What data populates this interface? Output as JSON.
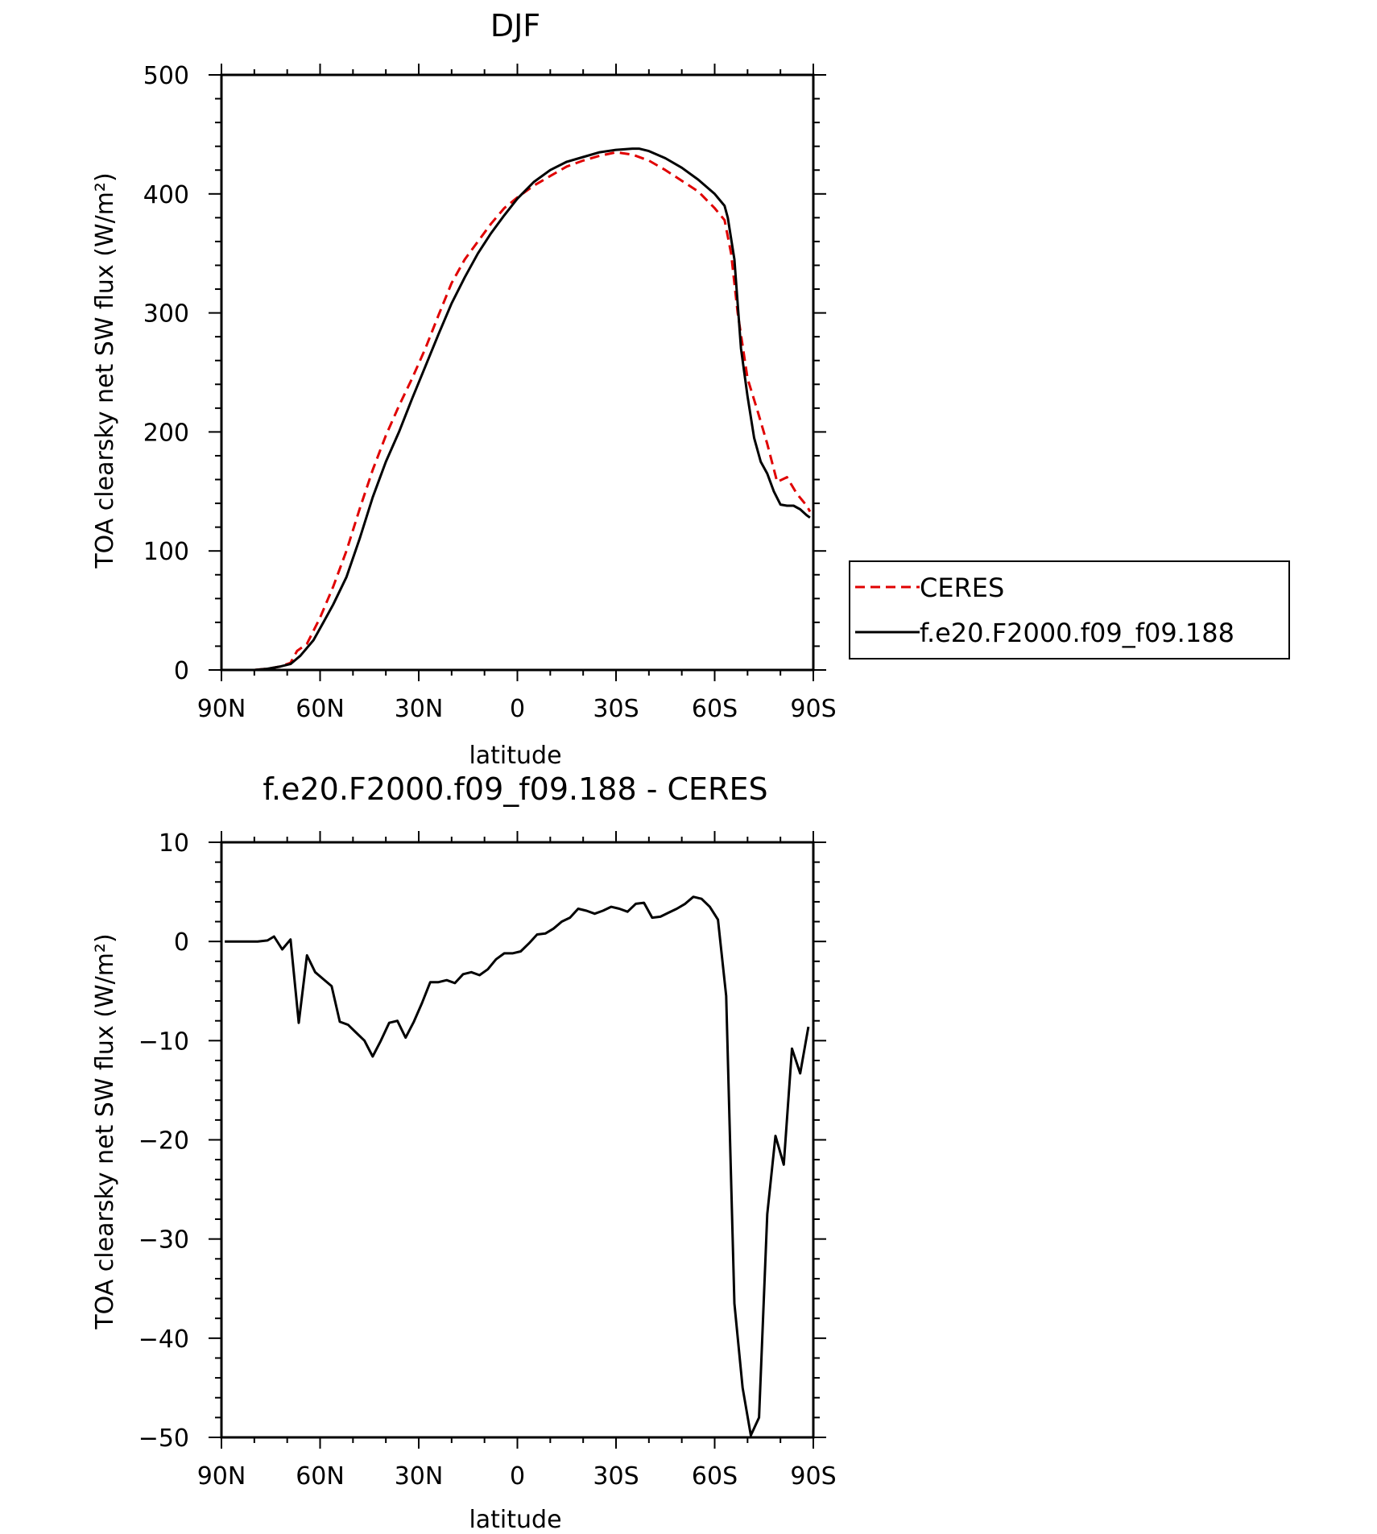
{
  "chart_data": [
    {
      "type": "line",
      "title": "DJF",
      "xlabel": "latitude",
      "ylabel": "TOA clearsky net SW flux (W/m²)",
      "xlim": [
        -90,
        90
      ],
      "ylim": [
        0,
        500
      ],
      "x_ticks": [
        -90,
        -60,
        -30,
        0,
        30,
        60,
        90
      ],
      "x_tick_labels": [
        "90N",
        "60N",
        "30N",
        "0",
        "30S",
        "60S",
        "90S"
      ],
      "y_ticks": [
        0,
        100,
        200,
        300,
        400,
        500
      ],
      "y_tick_labels": [
        "0",
        "100",
        "200",
        "300",
        "400",
        "500"
      ],
      "legend_position": "right",
      "series": [
        {
          "name": "CERES",
          "color": "#e00000",
          "style": "dashed",
          "x": [
            -89,
            -85,
            -80,
            -76,
            -72,
            -69,
            -67,
            -64,
            -60,
            -56,
            -52,
            -48,
            -44,
            -40,
            -36,
            -32,
            -28,
            -24,
            -20,
            -16,
            -12,
            -8,
            -4,
            0,
            5,
            10,
            15,
            20,
            25,
            30,
            35,
            40,
            45,
            50,
            55,
            60,
            63,
            65,
            67,
            70,
            73,
            76,
            79,
            82,
            85,
            88,
            89
          ],
          "y": [
            0,
            0,
            0,
            1,
            3,
            6,
            16,
            22,
            44,
            70,
            100,
            135,
            168,
            197,
            222,
            245,
            270,
            298,
            325,
            345,
            360,
            375,
            388,
            397,
            407,
            415,
            423,
            428,
            432,
            435,
            433,
            428,
            420,
            411,
            402,
            388,
            378,
            350,
            300,
            245,
            218,
            190,
            158,
            162,
            148,
            138,
            133
          ]
        },
        {
          "name": "f.e20.F2000.f09_f09.188",
          "color": "#000000",
          "style": "solid",
          "x": [
            -89,
            -85,
            -80,
            -76,
            -72,
            -69,
            -66,
            -62,
            -59,
            -56,
            -52,
            -48,
            -44,
            -40,
            -36,
            -32,
            -28,
            -24,
            -20,
            -16,
            -12,
            -8,
            -4,
            0,
            5,
            10,
            15,
            20,
            25,
            30,
            35,
            37,
            40,
            45,
            50,
            55,
            60,
            63,
            64,
            66,
            68,
            70,
            72,
            74,
            76,
            78,
            80,
            82,
            84,
            86,
            88,
            89
          ],
          "y": [
            0,
            0,
            0,
            1,
            3,
            5,
            12,
            25,
            40,
            55,
            78,
            110,
            145,
            175,
            200,
            228,
            255,
            282,
            308,
            330,
            350,
            367,
            382,
            396,
            410,
            420,
            427,
            431,
            435,
            437,
            438,
            438,
            436,
            430,
            422,
            412,
            400,
            390,
            380,
            345,
            270,
            230,
            195,
            175,
            165,
            150,
            139,
            138,
            138,
            135,
            130,
            128
          ]
        }
      ]
    },
    {
      "type": "line",
      "title": "f.e20.F2000.f09_f09.188 - CERES",
      "xlabel": "latitude",
      "ylabel": "TOA clearsky net SW flux (W/m²)",
      "xlim": [
        -90,
        90
      ],
      "ylim": [
        -50,
        10
      ],
      "x_ticks": [
        -90,
        -60,
        -30,
        0,
        30,
        60,
        90
      ],
      "x_tick_labels": [
        "90N",
        "60N",
        "30N",
        "0",
        "30S",
        "60S",
        "90S"
      ],
      "y_ticks": [
        -50,
        -40,
        -30,
        -20,
        -10,
        0,
        10
      ],
      "y_tick_labels": [
        "−50",
        "−40",
        "−30",
        "−20",
        "−10",
        "0",
        "10"
      ],
      "series": [
        {
          "name": "",
          "color": "#000000",
          "style": "solid",
          "x": [
            -89,
            -85,
            -82,
            -79,
            -76,
            -74,
            -71.5,
            -69,
            -66.5,
            -64,
            -61.5,
            -59,
            -56.5,
            -54,
            -51.5,
            -49,
            -46.5,
            -44,
            -41.5,
            -39,
            -36.5,
            -34,
            -31.5,
            -29,
            -26.5,
            -24,
            -21.5,
            -19,
            -16.5,
            -14,
            -11.5,
            -9,
            -6.5,
            -4,
            -1.5,
            1,
            3.5,
            6,
            8.5,
            11,
            13.5,
            16,
            18.5,
            21,
            23.5,
            26,
            28.5,
            31,
            33.5,
            36,
            38.5,
            41,
            43.5,
            46,
            48.5,
            51,
            53.5,
            56,
            58.5,
            61,
            63.5,
            66,
            68.5,
            71,
            73.5,
            76,
            78.5,
            81,
            83.5,
            86,
            88.5
          ],
          "y": [
            0,
            0,
            0,
            0,
            0.1,
            0.5,
            -0.8,
            0.2,
            -8.2,
            -1.4,
            -3.1,
            -3.8,
            -4.5,
            -8.1,
            -8.4,
            -9.2,
            -10.0,
            -11.6,
            -10.0,
            -8.2,
            -8.0,
            -9.7,
            -8.1,
            -6.2,
            -4.1,
            -4.1,
            -3.9,
            -4.2,
            -3.3,
            -3.1,
            -3.4,
            -2.8,
            -1.8,
            -1.2,
            -1.2,
            -1.0,
            -0.2,
            0.7,
            0.8,
            1.3,
            2.0,
            2.4,
            3.3,
            3.1,
            2.8,
            3.1,
            3.5,
            3.3,
            3.0,
            3.8,
            3.9,
            2.4,
            2.5,
            2.9,
            3.3,
            3.8,
            4.5,
            4.3,
            3.5,
            2.2,
            -5.5,
            -36.5,
            -45.0,
            -49.8,
            -48.0,
            -27.5,
            -19.6,
            -22.5,
            -10.8,
            -13.3,
            -8.6
          ]
        }
      ]
    }
  ]
}
